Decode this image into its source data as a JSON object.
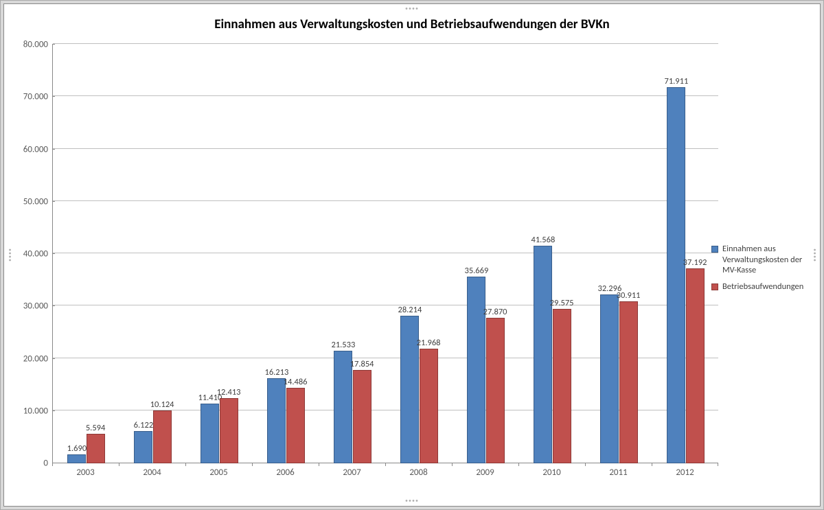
{
  "chart": {
    "type": "bar",
    "title": "Einnahmen aus Verwaltungskosten und Betriebsaufwendungen der BVKn",
    "title_fontsize": 19,
    "background_color": "#ffffff",
    "grid_color": "#bfbfbf",
    "axis_color": "#888888",
    "label_color": "#595959",
    "categories": [
      "2003",
      "2004",
      "2005",
      "2006",
      "2007",
      "2008",
      "2009",
      "2010",
      "2011",
      "2012"
    ],
    "series": [
      {
        "name": "Einnahmen aus Verwaltungskosten der MV-Kasse",
        "color": "#4f81bd",
        "border": "#385d8a",
        "values": [
          1690,
          6122,
          11410,
          16213,
          21533,
          28214,
          35669,
          41568,
          32296,
          71911
        ],
        "labels": [
          "1.690",
          "6.122",
          "11.410",
          "16.213",
          "21.533",
          "28.214",
          "35.669",
          "41.568",
          "32.296",
          "71.911"
        ]
      },
      {
        "name": "Betriebsaufwendungen",
        "color": "#c0504d",
        "border": "#8c3836",
        "values": [
          5594,
          10124,
          12413,
          14486,
          17854,
          21968,
          27870,
          29575,
          30911,
          37192
        ],
        "labels": [
          "5.594",
          "10.124",
          "12.413",
          "14.486",
          "17.854",
          "21.968",
          "27.870",
          "29.575",
          "30.911",
          "37.192"
        ]
      }
    ],
    "y_axis": {
      "min": 0,
      "max": 80000,
      "step": 10000,
      "tick_labels": [
        "0",
        "10.000",
        "20.000",
        "30.000",
        "40.000",
        "50.000",
        "60.000",
        "70.000",
        "80.000"
      ]
    },
    "bar": {
      "group_width_pct": 56,
      "gap_pct": 0
    },
    "legend_position": "right"
  }
}
